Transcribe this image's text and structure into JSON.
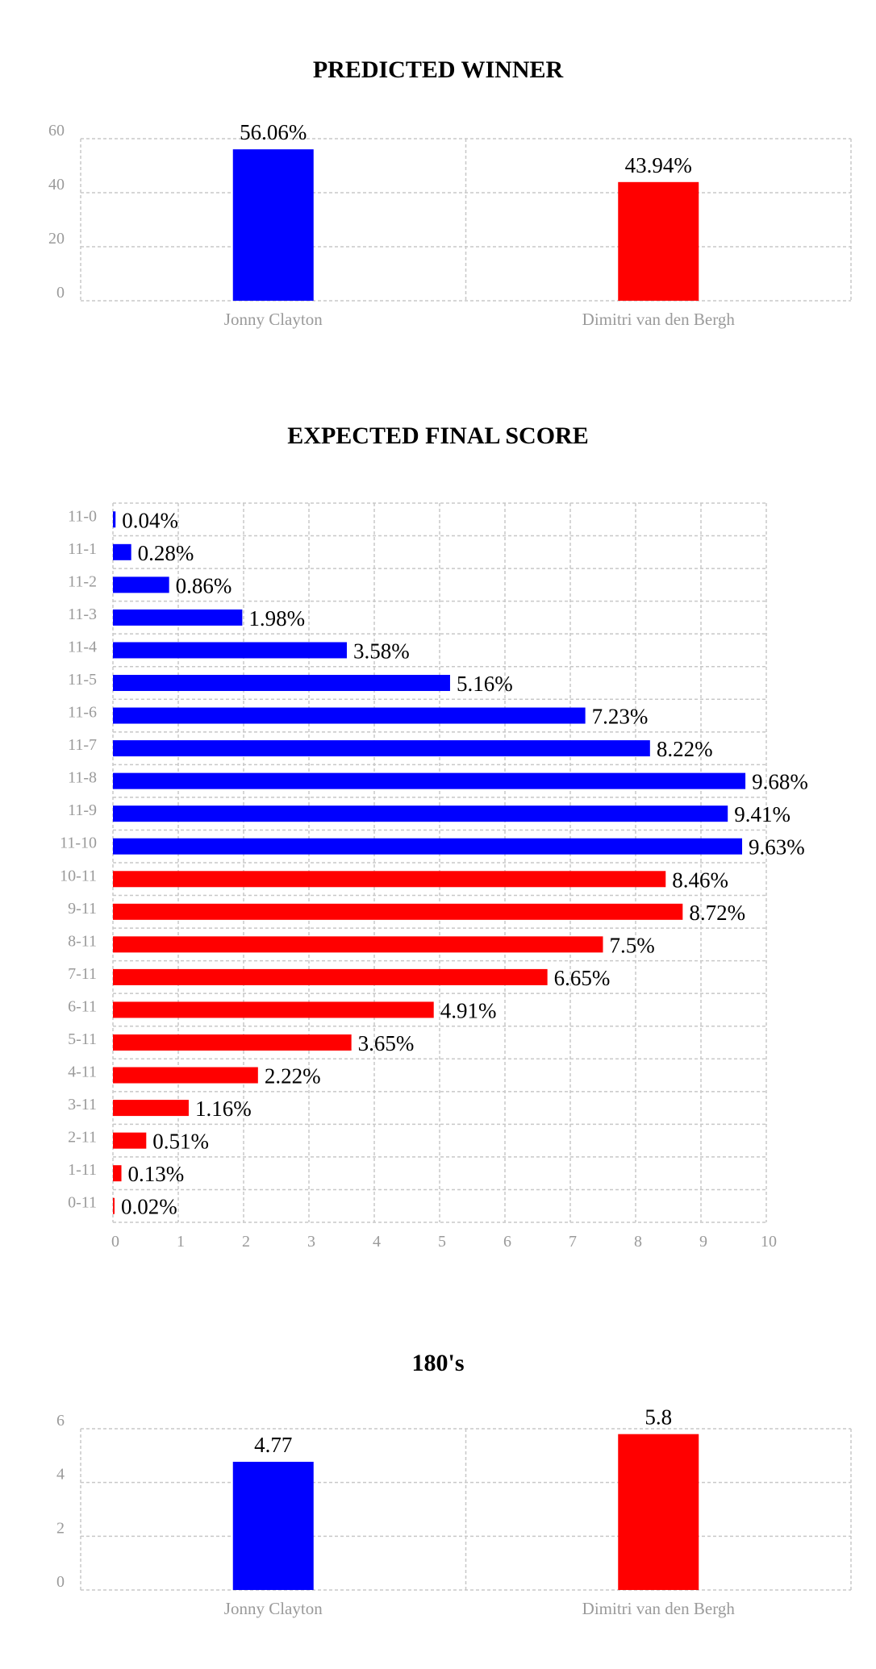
{
  "chart_data": [
    {
      "type": "bar",
      "title": "PREDICTED WINNER",
      "categories": [
        "Jonny Clayton",
        "Dimitri van den Bergh"
      ],
      "values": [
        56.06,
        43.94
      ],
      "data_labels": [
        "56.06%",
        "43.94%"
      ],
      "colors": [
        "#0000ff",
        "#ff0000"
      ],
      "ylim": [
        0,
        60
      ],
      "yticks": [
        0,
        20,
        40,
        60
      ],
      "grid": true
    },
    {
      "type": "bar",
      "orientation": "horizontal",
      "title": "EXPECTED FINAL SCORE",
      "categories": [
        "11-0",
        "11-1",
        "11-2",
        "11-3",
        "11-4",
        "11-5",
        "11-6",
        "11-7",
        "11-8",
        "11-9",
        "11-10",
        "10-11",
        "9-11",
        "8-11",
        "7-11",
        "6-11",
        "5-11",
        "4-11",
        "3-11",
        "2-11",
        "1-11",
        "0-11"
      ],
      "values": [
        0.04,
        0.28,
        0.86,
        1.98,
        3.58,
        5.16,
        7.23,
        8.22,
        9.68,
        9.41,
        9.63,
        8.46,
        8.72,
        7.5,
        6.65,
        4.91,
        3.65,
        2.22,
        1.16,
        0.51,
        0.13,
        0.02
      ],
      "data_labels": [
        "0.04%",
        "0.28%",
        "0.86%",
        "1.98%",
        "3.58%",
        "5.16%",
        "7.23%",
        "8.22%",
        "9.68%",
        "9.41%",
        "9.63%",
        "8.46%",
        "8.72%",
        "7.5%",
        "6.65%",
        "4.91%",
        "3.65%",
        "2.22%",
        "1.16%",
        "0.51%",
        "0.13%",
        "0.02%"
      ],
      "colors": [
        "#0000ff",
        "#0000ff",
        "#0000ff",
        "#0000ff",
        "#0000ff",
        "#0000ff",
        "#0000ff",
        "#0000ff",
        "#0000ff",
        "#0000ff",
        "#0000ff",
        "#ff0000",
        "#ff0000",
        "#ff0000",
        "#ff0000",
        "#ff0000",
        "#ff0000",
        "#ff0000",
        "#ff0000",
        "#ff0000",
        "#ff0000",
        "#ff0000"
      ],
      "xlim": [
        0,
        10
      ],
      "xticks": [
        0,
        1,
        2,
        3,
        4,
        5,
        6,
        7,
        8,
        9,
        10
      ],
      "grid": true
    },
    {
      "type": "bar",
      "title": "180's",
      "categories": [
        "Jonny Clayton",
        "Dimitri van den Bergh"
      ],
      "values": [
        4.77,
        5.8
      ],
      "data_labels": [
        "4.77",
        "5.8"
      ],
      "colors": [
        "#0000ff",
        "#ff0000"
      ],
      "ylim": [
        0,
        6
      ],
      "yticks": [
        0,
        2,
        4,
        6
      ],
      "grid": true
    }
  ]
}
